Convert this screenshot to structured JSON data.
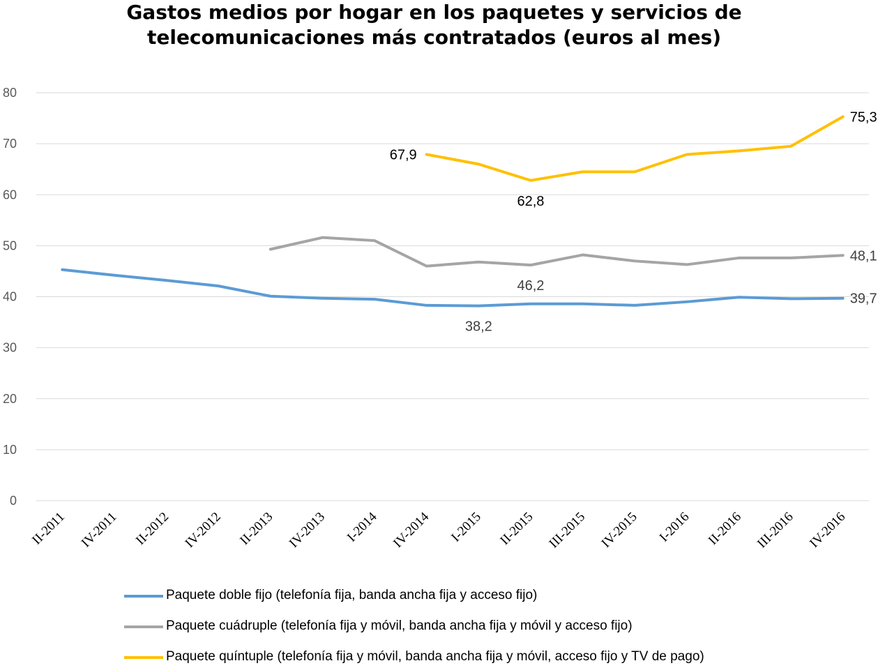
{
  "chart_data": {
    "type": "line",
    "title": "Gastos medios por hogar en los paquetes y servicios de telecomunicaciones más contratados (euros al mes)",
    "title_lines": [
      "Gastos medios por hogar en los paquetes y servicios de",
      "telecomunicaciones más contratados (euros al mes)"
    ],
    "xlabel": "",
    "ylabel": "",
    "ylim": [
      0,
      80
    ],
    "yticks": [
      "0",
      "10",
      "20",
      "30",
      "40",
      "50",
      "60",
      "70",
      "80"
    ],
    "grid": true,
    "legend_position": "bottom",
    "categories": [
      "II-2011",
      "IV-2011",
      "II-2012",
      "IV-2012",
      "II-2013",
      "IV-2013",
      "I-2014",
      "IV-2014",
      "I-2015",
      "II-2015",
      "III-2015",
      "IV-2015",
      "I-2016",
      "II-2016",
      "III-2016",
      "IV-2016"
    ],
    "series": [
      {
        "name": "Paquete doble fijo (telefonía fija, banda ancha fija y acceso fijo)",
        "color": "#5B9BD5",
        "values": [
          45.3,
          44.2,
          43.2,
          42.1,
          40.1,
          39.7,
          39.5,
          38.3,
          38.2,
          38.6,
          38.6,
          38.3,
          39.0,
          39.9,
          39.6,
          39.7
        ],
        "labels": [
          {
            "index": 8,
            "text": "38,2",
            "pos": "below"
          },
          {
            "index": 15,
            "text": "39,7",
            "pos": "right"
          }
        ]
      },
      {
        "name": "Paquete cuádruple (telefonía fija y móvil, banda ancha fija y móvil y acceso fijo)",
        "color": "#A5A5A5",
        "values": [
          null,
          null,
          null,
          null,
          49.3,
          51.6,
          51.0,
          46.0,
          46.8,
          46.2,
          48.2,
          47.0,
          46.3,
          47.6,
          47.6,
          48.1
        ],
        "labels": [
          {
            "index": 9,
            "text": "46,2",
            "pos": "below"
          },
          {
            "index": 15,
            "text": "48,1",
            "pos": "right"
          }
        ]
      },
      {
        "name": "Paquete quíntuple (telefonía fija y móvil, banda ancha fija y móvil, acceso fijo y TV de pago)",
        "color": "#FFC000",
        "values": [
          null,
          null,
          null,
          null,
          null,
          null,
          null,
          67.9,
          66.0,
          62.8,
          64.5,
          64.5,
          67.9,
          68.6,
          69.5,
          75.3
        ],
        "labels": [
          {
            "index": 7,
            "text": "67,9",
            "pos": "left"
          },
          {
            "index": 9,
            "text": "62,8",
            "pos": "below"
          },
          {
            "index": 15,
            "text": "75,3",
            "pos": "right"
          }
        ]
      }
    ]
  }
}
